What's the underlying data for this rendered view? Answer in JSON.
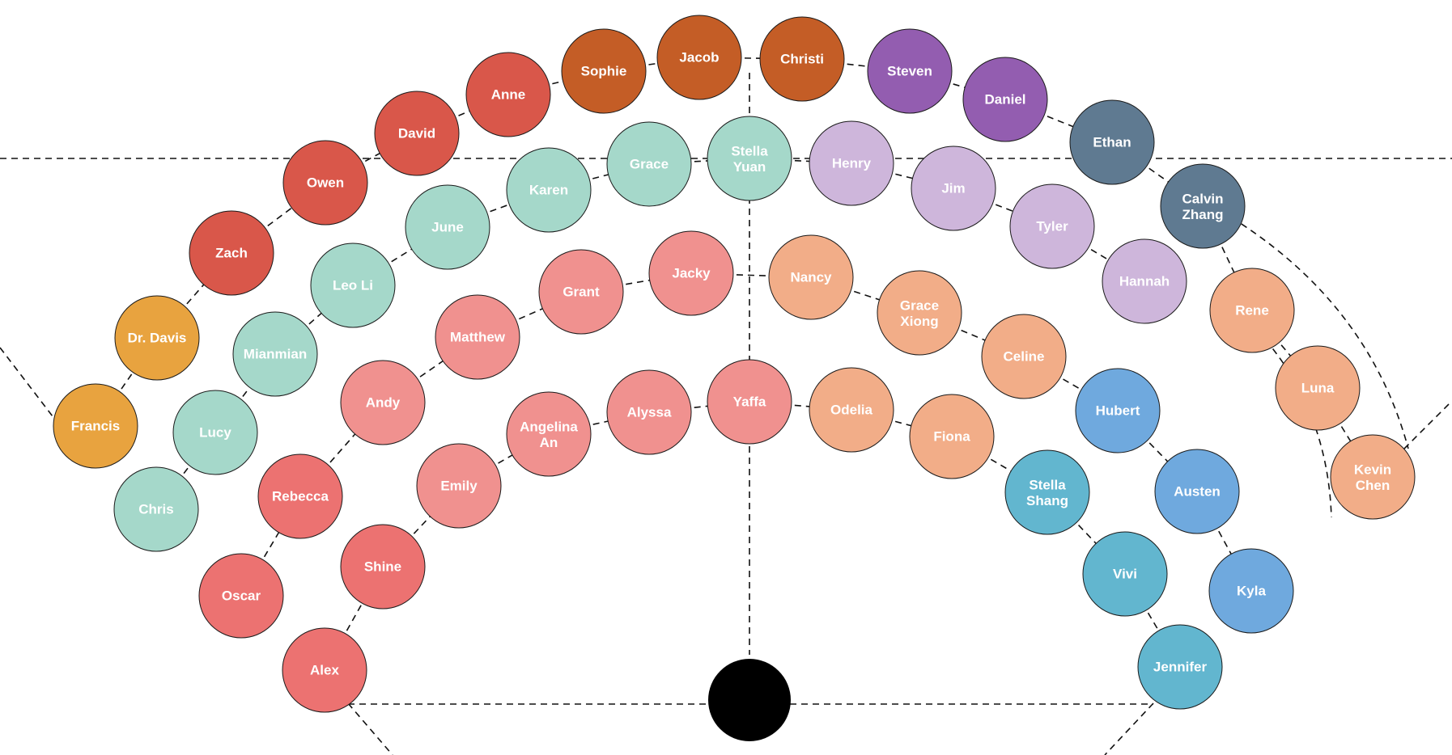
{
  "colors": {
    "red": "#d9574a",
    "rust": "#c45d26",
    "orange": "#e8a33f",
    "purple": "#935db0",
    "slate": "#5f7a91",
    "mint": "#a5d8ca",
    "lavender": "#ceb6db",
    "peach": "#f2ad88",
    "pink": "#f0918f",
    "coral": "#ec7271",
    "blue": "#6fa9de",
    "teal": "#62b6cf",
    "center": "#000000"
  },
  "rows": [
    {
      "id": "outer",
      "seats": [
        {
          "name": "Francis",
          "color": "orange"
        },
        {
          "name": "Dr. Davis",
          "color": "orange"
        },
        {
          "name": "Zach",
          "color": "red"
        },
        {
          "name": "Owen",
          "color": "red"
        },
        {
          "name": "David",
          "color": "red"
        },
        {
          "name": "Anne",
          "color": "red"
        },
        {
          "name": "Sophie",
          "color": "rust"
        },
        {
          "name": "Jacob",
          "color": "rust"
        },
        {
          "name": "Christi",
          "color": "rust"
        },
        {
          "name": "Steven",
          "color": "purple"
        },
        {
          "name": "Daniel",
          "color": "purple"
        },
        {
          "name": "Ethan",
          "color": "slate"
        },
        {
          "name": "Calvin Zhang",
          "color": "slate"
        },
        {
          "name": "Rene",
          "color": "peach"
        },
        {
          "name": "Luna",
          "color": "peach"
        },
        {
          "name": "Kevin Chen",
          "color": "peach"
        }
      ]
    },
    {
      "id": "second",
      "seats": [
        {
          "name": "Chris",
          "color": "mint"
        },
        {
          "name": "Lucy",
          "color": "mint"
        },
        {
          "name": "Mianmian",
          "color": "mint"
        },
        {
          "name": "Leo Li",
          "color": "mint"
        },
        {
          "name": "June",
          "color": "mint"
        },
        {
          "name": "Karen",
          "color": "mint"
        },
        {
          "name": "Grace",
          "color": "mint"
        },
        {
          "name": "Stella Yuan",
          "color": "mint"
        },
        {
          "name": "Henry",
          "color": "lavender"
        },
        {
          "name": "Jim",
          "color": "lavender"
        },
        {
          "name": "Tyler",
          "color": "lavender"
        },
        {
          "name": "Hannah",
          "color": "lavender"
        }
      ]
    },
    {
      "id": "third",
      "seats": [
        {
          "name": "Oscar",
          "color": "coral"
        },
        {
          "name": "Rebecca",
          "color": "coral"
        },
        {
          "name": "Andy",
          "color": "pink"
        },
        {
          "name": "Matthew",
          "color": "pink"
        },
        {
          "name": "Grant",
          "color": "pink"
        },
        {
          "name": "Jacky",
          "color": "pink"
        },
        {
          "name": "Nancy",
          "color": "peach"
        },
        {
          "name": "Grace Xiong",
          "color": "peach"
        },
        {
          "name": "Celine",
          "color": "peach"
        },
        {
          "name": "Hubert",
          "color": "blue"
        },
        {
          "name": "Austen",
          "color": "blue"
        },
        {
          "name": "Kyla",
          "color": "blue"
        }
      ]
    },
    {
      "id": "inner",
      "seats": [
        {
          "name": "Alex",
          "color": "coral"
        },
        {
          "name": "Shine",
          "color": "coral"
        },
        {
          "name": "Emily",
          "color": "pink"
        },
        {
          "name": "Angelina An",
          "color": "pink"
        },
        {
          "name": "Alyssa",
          "color": "pink"
        },
        {
          "name": "Yaffa",
          "color": "pink"
        },
        {
          "name": "Odelia",
          "color": "peach"
        },
        {
          "name": "Fiona",
          "color": "peach"
        },
        {
          "name": "Stella Shang",
          "color": "teal"
        },
        {
          "name": "Vivi",
          "color": "teal"
        },
        {
          "name": "Jennifer",
          "color": "teal"
        }
      ]
    }
  ]
}
